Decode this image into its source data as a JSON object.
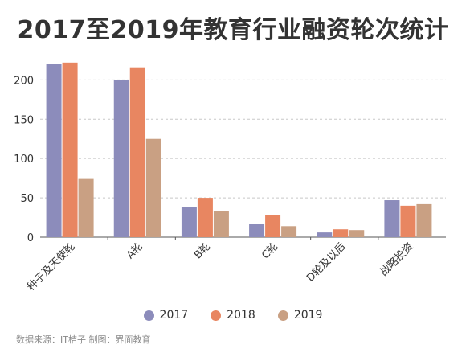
{
  "chart_data": {
    "type": "bar",
    "title": "2017至2019年教育行业融资轮次统计",
    "categories": [
      "种子及天使轮",
      "A轮",
      "B轮",
      "C轮",
      "D轮及以后",
      "战略投资"
    ],
    "series": [
      {
        "name": "2017",
        "color": "#8c8cbb",
        "values": [
          220,
          200,
          38,
          17,
          6,
          47
        ]
      },
      {
        "name": "2018",
        "color": "#e88661",
        "values": [
          222,
          216,
          50,
          28,
          10,
          40
        ]
      },
      {
        "name": "2019",
        "color": "#c9a083",
        "values": [
          74,
          125,
          33,
          14,
          9,
          42
        ]
      }
    ],
    "yticks": [
      0,
      50,
      100,
      150,
      200
    ],
    "ylim": [
      0,
      230
    ],
    "grid": true,
    "legend_position": "bottom"
  },
  "source": "数据来源：IT桔子 制图：界面教育"
}
